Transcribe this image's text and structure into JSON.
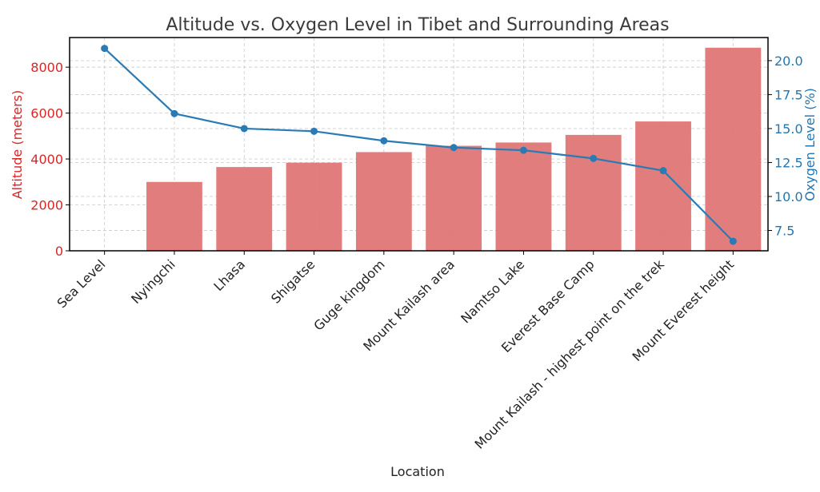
{
  "chart_data": {
    "type": "bar+line",
    "title": "Altitude vs. Oxygen Level in Tibet and Surrounding Areas",
    "xlabel": "Location",
    "ylabel": "Altitude (meters)",
    "y2label": "Oxygen Level (%)",
    "categories": [
      "Sea Level",
      "Nyingchi",
      "Lhasa",
      "Shigatse",
      "Guge kingdom",
      "Mount Kailash area",
      "Namtso Lake",
      "Everest Base Camp",
      "Mount Kailash - highest point on the trek",
      "Mount Everest height"
    ],
    "series": [
      {
        "name": "Altitude (meters)",
        "type": "bar",
        "axis": "left",
        "color": "#e07676",
        "values": [
          0,
          3000,
          3650,
          3840,
          4300,
          4575,
          4718,
          5050,
          5636,
          8849
        ]
      },
      {
        "name": "Oxygen Level (%)",
        "type": "line",
        "axis": "right",
        "color": "#2a7ab5",
        "values": [
          20.9,
          16.1,
          15.0,
          14.8,
          14.1,
          13.6,
          13.4,
          12.8,
          11.9,
          6.7
        ]
      }
    ],
    "ylim": [
      0,
      9292
    ],
    "y2lim": [
      6.0,
      21.7
    ],
    "yticks": [
      "0",
      "2000",
      "4000",
      "6000",
      "8000"
    ],
    "ytick_values": [
      0,
      2000,
      4000,
      6000,
      8000
    ],
    "y2ticks": [
      "7.5",
      "10.0",
      "12.5",
      "15.0",
      "17.5",
      "20.0"
    ],
    "y2tick_values": [
      7.5,
      10.0,
      12.5,
      15.0,
      17.5,
      20.0
    ],
    "left_axis_color": "#d62728",
    "right_axis_color": "#1f77b4",
    "grid": true
  }
}
